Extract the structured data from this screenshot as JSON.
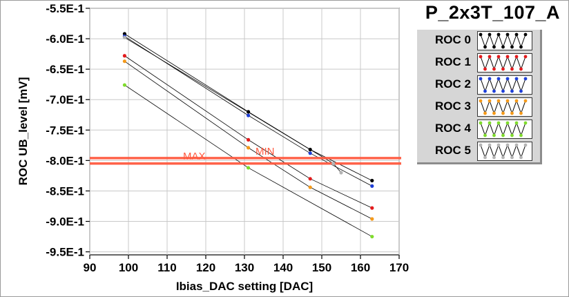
{
  "chart_data": {
    "type": "line",
    "title": "P_2x3T_107_A",
    "xlabel": "Ibias_DAC setting [DAC]",
    "ylabel": "ROC UB_level [mV]",
    "xlim": [
      90,
      170
    ],
    "ylim": [
      -0.955,
      -0.55
    ],
    "x_ticks": [
      "90",
      "100",
      "110",
      "120",
      "130",
      "140",
      "150",
      "160",
      "170"
    ],
    "y_ticks": [
      "-5.5E-1",
      "-6.0E-1",
      "-6.5E-1",
      "-7.0E-1",
      "-7.5E-1",
      "-8.0E-1",
      "-8.5E-1",
      "-9.0E-1",
      "-9.5E-1"
    ],
    "grid": true,
    "legend_position": "right",
    "series": [
      {
        "name": "ROC 0",
        "color": "#000000",
        "points": [
          [
            99,
            -0.592
          ],
          [
            131,
            -0.72
          ],
          [
            147,
            -0.782
          ],
          [
            163,
            -0.833
          ]
        ]
      },
      {
        "name": "ROC 1",
        "color": "#e41a1c",
        "points": [
          [
            99,
            -0.628
          ],
          [
            131,
            -0.766
          ],
          [
            147,
            -0.83
          ],
          [
            163,
            -0.878
          ]
        ]
      },
      {
        "name": "ROC 2",
        "color": "#1f3fd6",
        "points": [
          [
            99,
            -0.596
          ],
          [
            131,
            -0.726
          ],
          [
            147,
            -0.788
          ],
          [
            163,
            -0.842
          ]
        ]
      },
      {
        "name": "ROC 3",
        "color": "#f59a1a",
        "points": [
          [
            99,
            -0.637
          ],
          [
            131,
            -0.779
          ],
          [
            147,
            -0.844
          ],
          [
            163,
            -0.896
          ]
        ]
      },
      {
        "name": "ROC 4",
        "color": "#7fdc2c",
        "points": [
          [
            99,
            -0.676
          ],
          [
            131,
            -0.812
          ],
          [
            163,
            -0.925
          ]
        ]
      },
      {
        "name": "ROC 5",
        "color": "#b4b4b4",
        "points": [
          [
            99,
            -0.598
          ],
          [
            153,
            -0.805
          ],
          [
            155,
            -0.82
          ]
        ]
      }
    ],
    "min_line": {
      "label": "MIN",
      "y": -0.796,
      "color": "#ff5a40"
    },
    "max_line": {
      "label": "MAX",
      "y": -0.805,
      "color": "#ff5a40"
    }
  }
}
